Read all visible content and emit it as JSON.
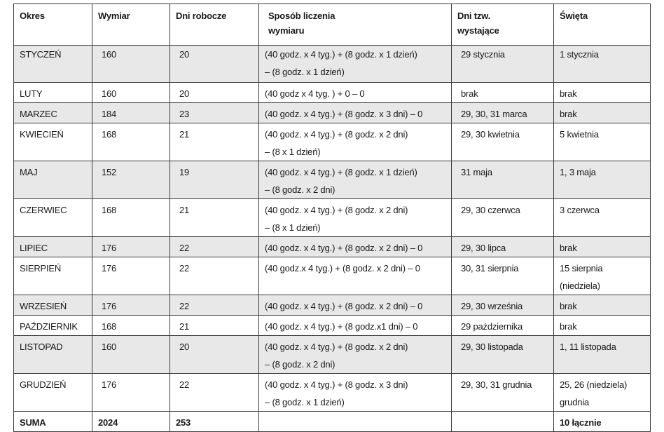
{
  "table": {
    "headers": [
      "Okres",
      "Wymiar",
      "Dni robocze",
      [
        "Sposób liczenia",
        "wymiaru"
      ],
      [
        "Dni tzw.",
        "wystające"
      ],
      "Święta"
    ],
    "rows": [
      {
        "okres": "STYCZEŃ",
        "wymiar": "160",
        "dni_robocze": "20",
        "sposob": [
          "(40 godz. x 4 tyg.) + (8 godz. x 1 dzień)",
          "– (8 godz. x 1 dzień)"
        ],
        "wystajace": [
          "29 stycznia"
        ],
        "swieta": [
          "1 stycznia"
        ],
        "shaded": true
      },
      {
        "okres": "LUTY",
        "wymiar": "160",
        "dni_robocze": "20",
        "sposob": [
          "(40 godz x 4 tyg. ) + 0 – 0"
        ],
        "wystajace": [
          "brak"
        ],
        "swieta": [
          "brak"
        ],
        "shaded": false
      },
      {
        "okres": "MARZEC",
        "wymiar": "184",
        "dni_robocze": "23",
        "sposob": [
          "(40 godz. x 4 tyg.) + (8 godz. x 3 dni) – 0"
        ],
        "wystajace": [
          "29, 30, 31 marca"
        ],
        "swieta": [
          "brak"
        ],
        "shaded": true
      },
      {
        "okres": "KWIECIEŃ",
        "wymiar": "168",
        "dni_robocze": "21",
        "sposob": [
          "(40 godz. x 4 tyg.) + (8 godz. x 2 dni)",
          "– (8 x 1 dzień)"
        ],
        "wystajace": [
          "29, 30 kwietnia"
        ],
        "swieta": [
          "5 kwietnia"
        ],
        "shaded": false
      },
      {
        "okres": "MAJ",
        "wymiar": "152",
        "dni_robocze": "19",
        "sposob": [
          "(40 godz. x 4 tyg.) + (8 godz. x 1 dzień)",
          "– (8 godz. x 2 dni)"
        ],
        "wystajace": [
          "31 maja"
        ],
        "swieta": [
          "1, 3 maja"
        ],
        "shaded": true
      },
      {
        "okres": "CZERWIEC",
        "wymiar": "168",
        "dni_robocze": "21",
        "sposob": [
          "(40 godz. x 4 tyg.) + (8 godz. x 2 dni)",
          "– (8 x 1 dzień)"
        ],
        "wystajace": [
          "29, 30 czerwca"
        ],
        "swieta": [
          "3 czerwca"
        ],
        "shaded": false
      },
      {
        "okres": "LIPIEC",
        "wymiar": "176",
        "dni_robocze": "22",
        "sposob": [
          "(40 godz. x 4 tyg.) + (8 godz. x 2 dni) – 0"
        ],
        "wystajace": [
          "29, 30 lipca"
        ],
        "swieta": [
          "brak"
        ],
        "shaded": true
      },
      {
        "okres": "SIERPIEŃ",
        "wymiar": "176",
        "dni_robocze": "22",
        "sposob": [
          "(40 godz.x 4 tyg.) + (8 godz. x 2 dni) – 0"
        ],
        "wystajace": [
          "30, 31 sierpnia"
        ],
        "swieta": [
          "15 sierpnia",
          "(niedziela)"
        ],
        "shaded": false
      },
      {
        "okres": "WRZESIEŃ",
        "wymiar": "176",
        "dni_robocze": "22",
        "sposob": [
          "(40 godz. x 4 tyg.) + (8 godz. x 2 dni) – 0"
        ],
        "wystajace": [
          "29, 30 września"
        ],
        "swieta": [
          "brak"
        ],
        "shaded": true
      },
      {
        "okres": "PAŹDZIERNIK",
        "wymiar": "168",
        "dni_robocze": "21",
        "sposob": [
          "(40 godz. x 4 tyg.) + (8 godz.x1 dni) – 0"
        ],
        "wystajace": [
          "29 października"
        ],
        "swieta": [
          "brak"
        ],
        "shaded": false
      },
      {
        "okres": "LISTOPAD",
        "wymiar": "160",
        "dni_robocze": "20",
        "sposob": [
          "(40 godz. x 4 tyg.) + (8 godz. x 2 dni)",
          "– (8 godz. x 2 dni)"
        ],
        "wystajace": [
          "29, 30 listopada"
        ],
        "swieta": [
          "1, 11 listopada"
        ],
        "shaded": true
      },
      {
        "okres": "GRUDZIEŃ",
        "wymiar": "176",
        "dni_robocze": "22",
        "sposob": [
          "(40 godz. x 4 tyg.) + (8 godz. x 3 dni)",
          "– (8 godz. x 1 dzień)"
        ],
        "wystajace": [
          "29, 30, 31 grudnia"
        ],
        "swieta": [
          "25, 26 (niedziela)",
          "grudnia"
        ],
        "shaded": false
      }
    ],
    "sum": {
      "okres": "SUMA",
      "wymiar": "2024",
      "dni_robocze": "253",
      "sposob": "",
      "wystajace": "",
      "swieta": "10 łącznie"
    }
  }
}
